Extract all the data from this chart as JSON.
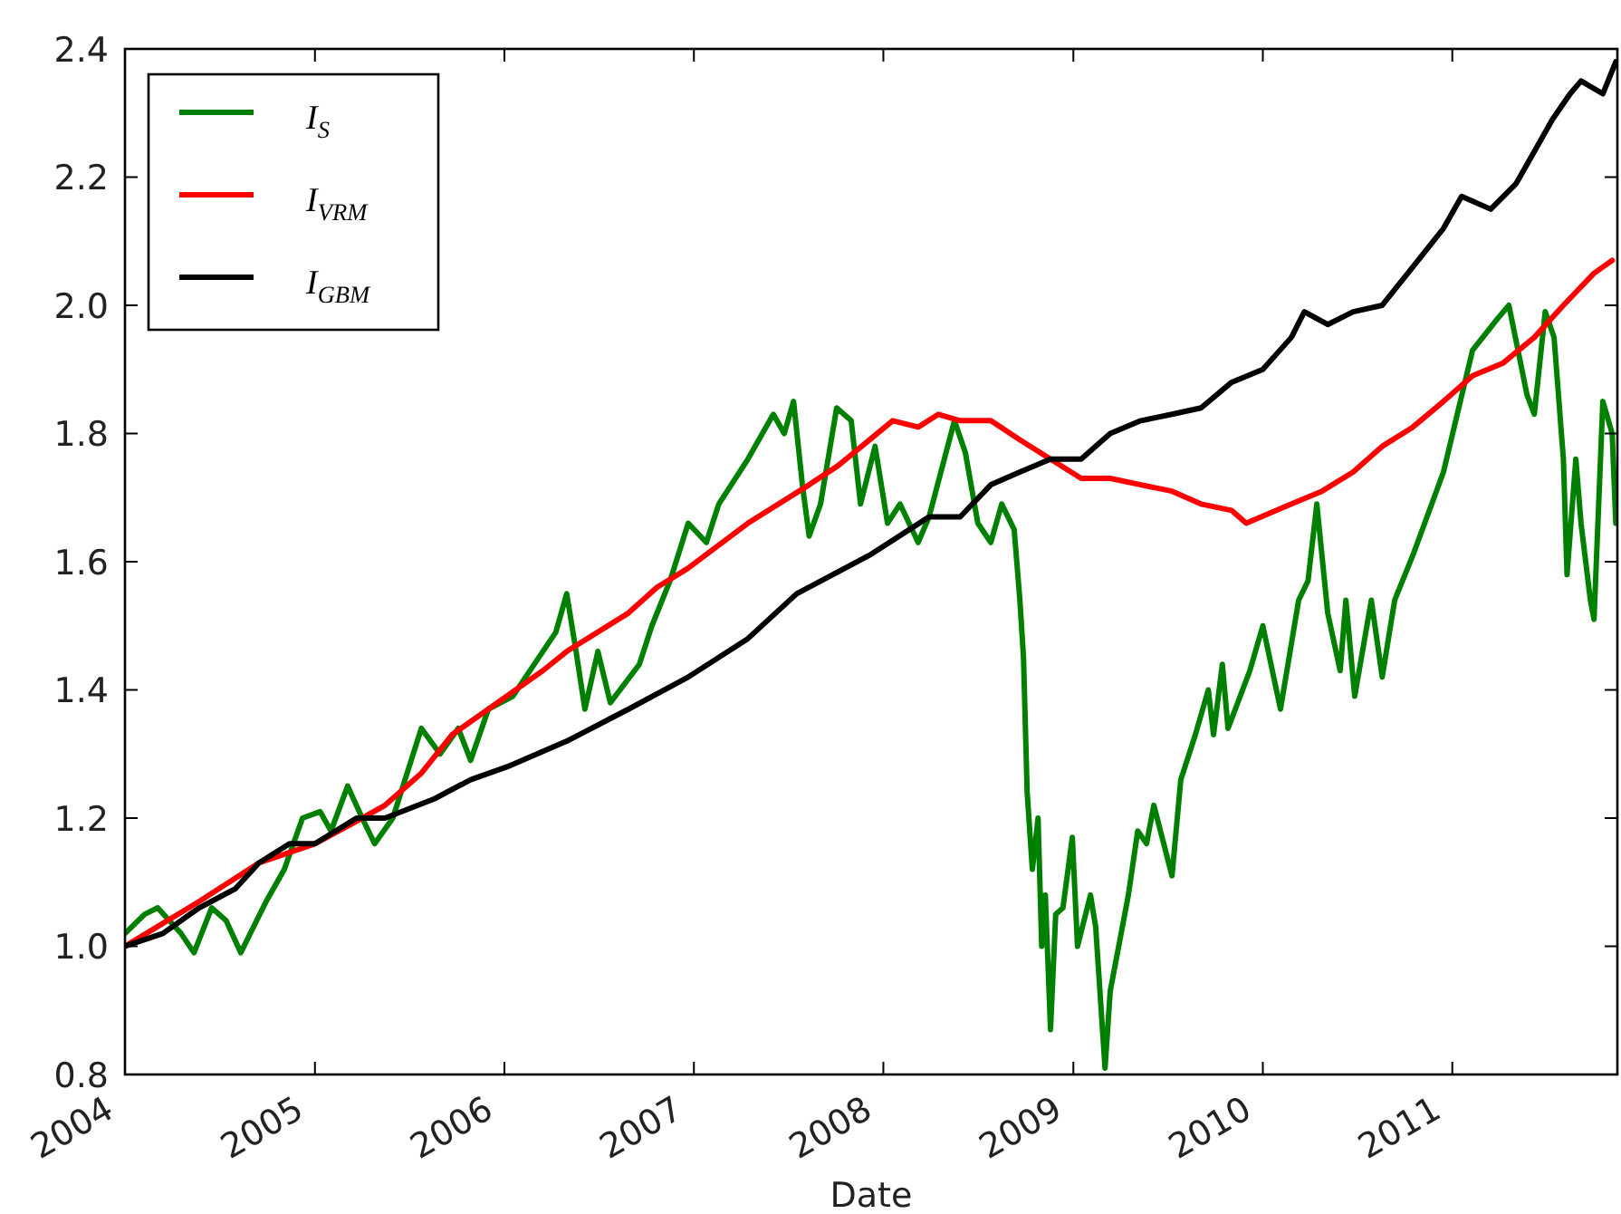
{
  "chart_data": {
    "type": "line",
    "xlabel": "Date",
    "legend": "top left",
    "xlim": [
      "2004-01-01",
      "2011-11-15"
    ],
    "ylim": [
      0.8,
      2.4
    ],
    "xticks": [
      "2004",
      "2005",
      "2006",
      "2007",
      "2008",
      "2009",
      "2010",
      "2011"
    ],
    "yticks": [
      0.8,
      {
        "value": 1.0,
        "label": "1.0"
      },
      1.2,
      1.4,
      1.6,
      1.8,
      {
        "value": 2.0,
        "label": "2.0"
      },
      2.2,
      2.4
    ],
    "series": [
      {
        "name": "I$_{S}$",
        "color": "#008000",
        "x": [
          "2004-01-01",
          "2004-02-08",
          "2004-03-04",
          "2004-04-18",
          "2004-05-13",
          "2004-06-16",
          "2004-07-14",
          "2004-08-11",
          "2004-09-29",
          "2004-11-03",
          "2004-12-08",
          "2005-01-11",
          "2005-02-01",
          "2005-03-05",
          "2005-04-02",
          "2005-04-26",
          "2005-05-31",
          "2005-07-25",
          "2005-08-30",
          "2005-10-04",
          "2005-10-28",
          "2005-12-01",
          "2006-01-17",
          "2006-03-16",
          "2006-04-10",
          "2006-05-01",
          "2006-05-19",
          "2006-06-05",
          "2006-06-30",
          "2006-07-24",
          "2006-09-18",
          "2006-10-12",
          "2006-11-16",
          "2006-12-21",
          "2007-01-25",
          "2007-02-18",
          "2007-04-15",
          "2007-06-03",
          "2007-06-24",
          "2007-07-12",
          "2007-07-29",
          "2007-08-11",
          "2007-09-02",
          "2007-10-03",
          "2007-10-31",
          "2007-11-18",
          "2007-12-16",
          "2008-01-09",
          "2008-02-02",
          "2008-03-08",
          "2008-03-29",
          "2008-05-17",
          "2008-06-07",
          "2008-07-01",
          "2008-07-26",
          "2008-08-16",
          "2008-09-09",
          "2008-09-20",
          "2008-09-27",
          "2008-10-04",
          "2008-10-14",
          "2008-10-25",
          "2008-11-01",
          "2008-11-08",
          "2008-11-18",
          "2008-11-28",
          "2008-12-12",
          "2008-12-30",
          "2009-01-09",
          "2009-02-03",
          "2009-02-13",
          "2009-03-03",
          "2009-03-13",
          "2009-04-17",
          "2009-05-05",
          "2009-05-22",
          "2009-06-05",
          "2009-07-10",
          "2009-07-27",
          "2009-08-24",
          "2009-09-18",
          "2009-09-28",
          "2009-10-15",
          "2009-10-26",
          "2009-12-07",
          "2010-01-01",
          "2010-02-04",
          "2010-03-11",
          "2010-03-29",
          "2010-04-15",
          "2010-05-06",
          "2010-05-30",
          "2010-06-10",
          "2010-06-27",
          "2010-07-29",
          "2010-08-19",
          "2010-09-12",
          "2010-10-17",
          "2010-12-15",
          "2011-02-09",
          "2011-03-30",
          "2011-04-20",
          "2011-05-25",
          "2011-06-08",
          "2011-06-29",
          "2011-07-16",
          "2011-08-03",
          "2011-08-10",
          "2011-08-27",
          "2011-09-06",
          "2011-09-24",
          "2011-10-01",
          "2011-10-18",
          "2011-11-05",
          "2011-11-12"
        ],
        "values": [
          1.02,
          1.05,
          1.06,
          1.02,
          0.99,
          1.06,
          1.04,
          0.99,
          1.07,
          1.12,
          1.2,
          1.21,
          1.18,
          1.25,
          1.2,
          1.16,
          1.2,
          1.34,
          1.3,
          1.34,
          1.29,
          1.37,
          1.39,
          1.46,
          1.49,
          1.55,
          1.46,
          1.37,
          1.46,
          1.38,
          1.44,
          1.5,
          1.57,
          1.66,
          1.63,
          1.69,
          1.76,
          1.83,
          1.8,
          1.85,
          1.72,
          1.64,
          1.69,
          1.84,
          1.82,
          1.69,
          1.78,
          1.66,
          1.69,
          1.63,
          1.67,
          1.82,
          1.77,
          1.66,
          1.63,
          1.69,
          1.65,
          1.54,
          1.45,
          1.24,
          1.12,
          1.2,
          1.0,
          1.08,
          0.87,
          1.05,
          1.06,
          1.17,
          1.0,
          1.08,
          1.03,
          0.81,
          0.93,
          1.08,
          1.18,
          1.16,
          1.22,
          1.11,
          1.26,
          1.33,
          1.4,
          1.33,
          1.44,
          1.34,
          1.43,
          1.5,
          1.37,
          1.54,
          1.57,
          1.69,
          1.52,
          1.43,
          1.54,
          1.39,
          1.54,
          1.42,
          1.54,
          1.61,
          1.74,
          1.93,
          1.98,
          2.0,
          1.86,
          1.83,
          1.99,
          1.95,
          1.76,
          1.58,
          1.76,
          1.66,
          1.54,
          1.51,
          1.85,
          1.8,
          1.66
        ]
      },
      {
        "name": "I$_{VRM}$",
        "color": "#ff0000",
        "x": [
          "2004-01-01",
          "2004-05-23",
          "2004-09-15",
          "2005-01-01",
          "2005-04-02",
          "2005-05-16",
          "2005-07-25",
          "2005-09-22",
          "2005-12-01",
          "2006-03-16",
          "2006-05-01",
          "2006-08-28",
          "2006-10-22",
          "2006-12-21",
          "2007-04-15",
          "2007-08-11",
          "2007-10-06",
          "2007-12-05",
          "2008-01-19",
          "2008-03-08",
          "2008-04-16",
          "2008-05-28",
          "2008-07-26",
          "2008-09-20",
          "2008-11-18",
          "2009-01-16",
          "2009-03-13",
          "2009-05-11",
          "2009-07-10",
          "2009-09-04",
          "2009-11-02",
          "2009-11-30",
          "2010-02-25",
          "2010-04-25",
          "2010-06-24",
          "2010-08-19",
          "2010-10-17",
          "2010-12-15",
          "2011-02-09",
          "2011-04-09",
          "2011-06-08",
          "2011-08-03",
          "2011-10-01",
          "2011-11-05"
        ],
        "values": [
          1.0,
          1.07,
          1.13,
          1.16,
          1.2,
          1.22,
          1.27,
          1.33,
          1.37,
          1.43,
          1.46,
          1.52,
          1.56,
          1.59,
          1.66,
          1.72,
          1.75,
          1.79,
          1.82,
          1.81,
          1.83,
          1.82,
          1.82,
          1.79,
          1.76,
          1.73,
          1.73,
          1.72,
          1.71,
          1.69,
          1.68,
          1.66,
          1.69,
          1.71,
          1.74,
          1.78,
          1.81,
          1.85,
          1.89,
          1.91,
          1.95,
          2.0,
          2.05,
          2.07
        ]
      },
      {
        "name": "I$_{GBM}$",
        "color": "#000000",
        "x": [
          "2004-01-01",
          "2004-03-14",
          "2004-05-23",
          "2004-08-01",
          "2004-09-15",
          "2004-11-13",
          "2005-01-01",
          "2005-03-22",
          "2005-05-16",
          "2005-08-19",
          "2005-10-28",
          "2006-01-06",
          "2006-05-01",
          "2006-08-28",
          "2006-12-21",
          "2007-04-15",
          "2007-07-18",
          "2007-12-05",
          "2008-03-29",
          "2008-05-28",
          "2008-07-26",
          "2008-09-20",
          "2008-11-18",
          "2009-01-16",
          "2009-03-13",
          "2009-05-11",
          "2009-07-10",
          "2009-09-04",
          "2009-11-02",
          "2010-01-01",
          "2010-02-25",
          "2010-03-22",
          "2010-05-06",
          "2010-06-24",
          "2010-08-19",
          "2010-10-17",
          "2010-12-15",
          "2011-01-19",
          "2011-03-16",
          "2011-05-04",
          "2011-06-08",
          "2011-07-13",
          "2011-08-16",
          "2011-09-06",
          "2011-10-18",
          "2011-11-12"
        ],
        "values": [
          1.0,
          1.02,
          1.06,
          1.09,
          1.13,
          1.16,
          1.16,
          1.2,
          1.2,
          1.23,
          1.26,
          1.28,
          1.32,
          1.37,
          1.42,
          1.48,
          1.55,
          1.61,
          1.67,
          1.67,
          1.72,
          1.74,
          1.76,
          1.76,
          1.8,
          1.82,
          1.83,
          1.84,
          1.88,
          1.9,
          1.95,
          1.99,
          1.97,
          1.99,
          2.0,
          2.06,
          2.12,
          2.17,
          2.15,
          2.19,
          2.24,
          2.29,
          2.33,
          2.35,
          2.33,
          2.38
        ]
      }
    ]
  }
}
